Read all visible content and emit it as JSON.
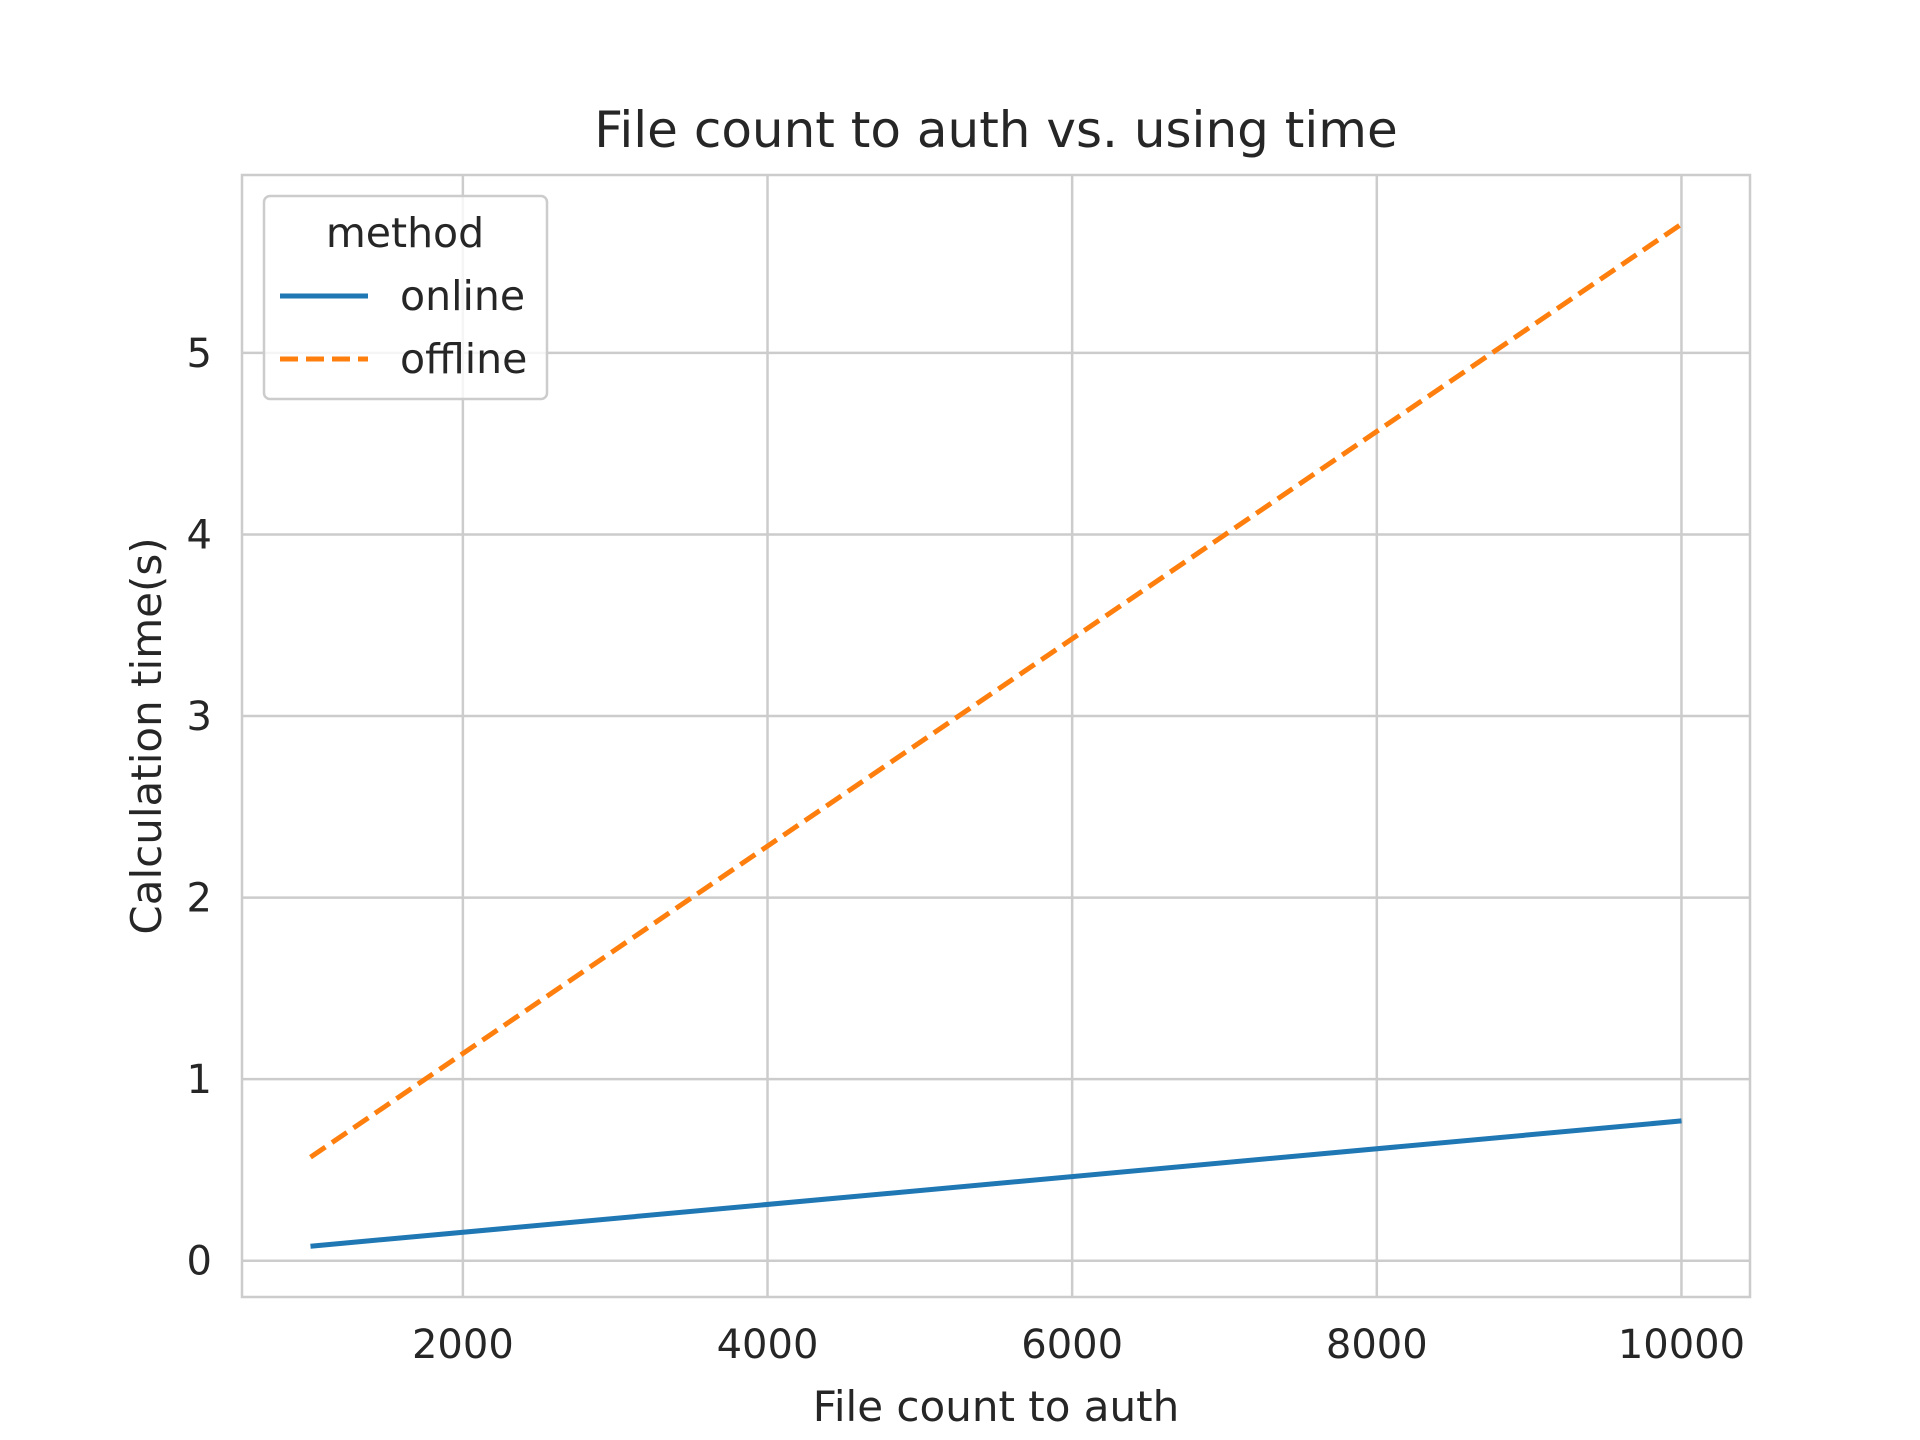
{
  "chart_data": {
    "type": "line",
    "title": "File count to auth vs. using time",
    "xlabel": "File count to auth",
    "ylabel": "Calculation time(s)",
    "xlim": [
      550,
      10450
    ],
    "ylim": [
      -0.2,
      5.98
    ],
    "xticks": [
      2000,
      4000,
      6000,
      8000,
      10000
    ],
    "xtick_labels": [
      "2000",
      "4000",
      "6000",
      "8000",
      "10000"
    ],
    "yticks": [
      0,
      1,
      2,
      3,
      4,
      5
    ],
    "ytick_labels": [
      "0",
      "1",
      "2",
      "3",
      "4",
      "5"
    ],
    "grid": true,
    "legend": {
      "title": "method",
      "placement": "top-left"
    },
    "series": [
      {
        "name": "online",
        "color": "#1f77b4",
        "style": "solid",
        "x": [
          1000,
          10000
        ],
        "y": [
          0.08,
          0.77
        ]
      },
      {
        "name": "offline",
        "color": "#ff7f0e",
        "style": "dashed",
        "x": [
          1000,
          10000
        ],
        "y": [
          0.57,
          5.71
        ]
      }
    ]
  }
}
